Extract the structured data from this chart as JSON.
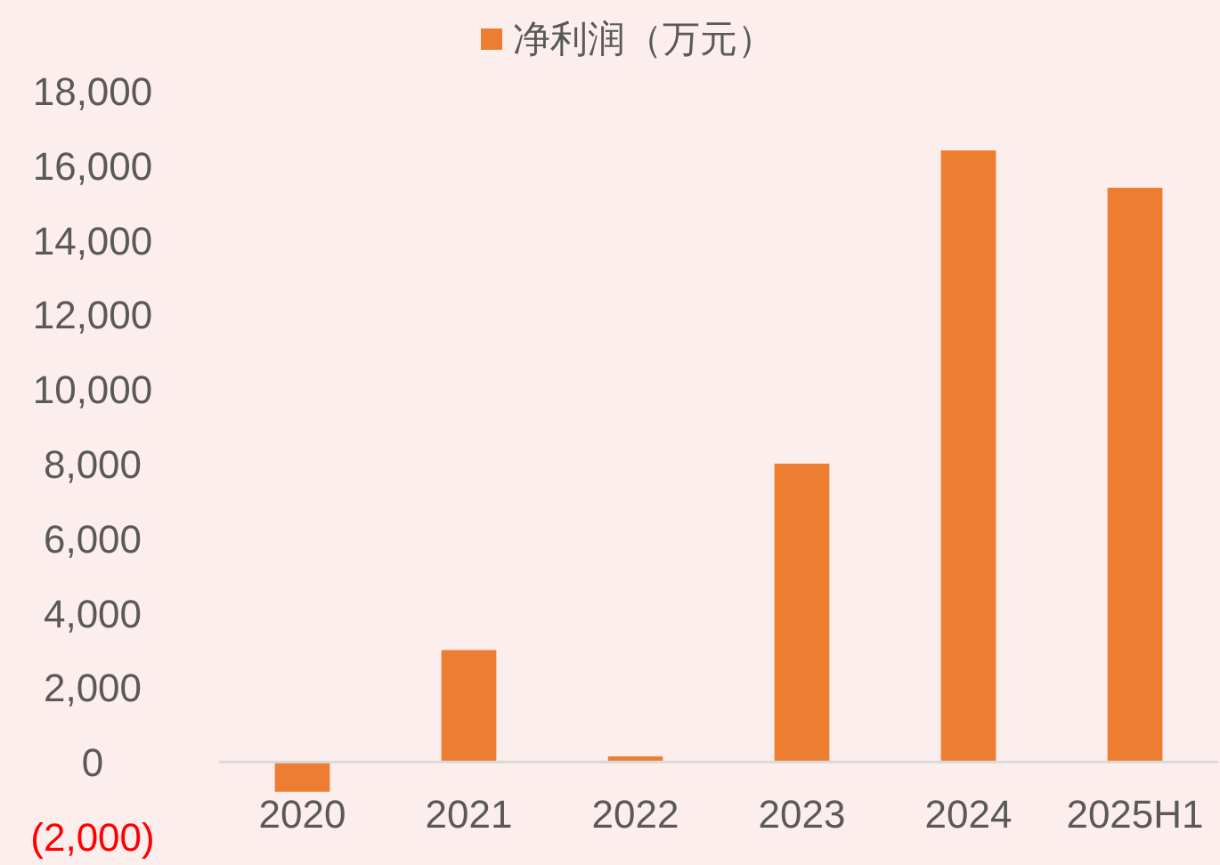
{
  "chart_data": {
    "type": "bar",
    "categories": [
      "2020",
      "2021",
      "2022",
      "2023",
      "2024",
      "2025H1"
    ],
    "series": [
      {
        "name": "净利润（万元）",
        "color": "#ed7d31",
        "values": [
          -800,
          3000,
          150,
          8000,
          16400,
          15400
        ]
      }
    ],
    "ylim": [
      -2000,
      18000
    ],
    "yticks": [
      {
        "value": -2000,
        "label": "(2,000)"
      },
      0,
      {
        "value": 2000,
        "label": "2,000"
      },
      {
        "value": 4000,
        "label": "4,000"
      },
      {
        "value": 6000,
        "label": "6,000"
      },
      {
        "value": 8000,
        "label": "8,000"
      },
      {
        "value": 10000,
        "label": "10,000"
      },
      {
        "value": 12000,
        "label": "12,000"
      },
      {
        "value": 14000,
        "label": "14,000"
      },
      {
        "value": 16000,
        "label": "16,000"
      },
      {
        "value": 18000,
        "label": "18,000"
      }
    ],
    "legend": "top",
    "grid": false
  }
}
